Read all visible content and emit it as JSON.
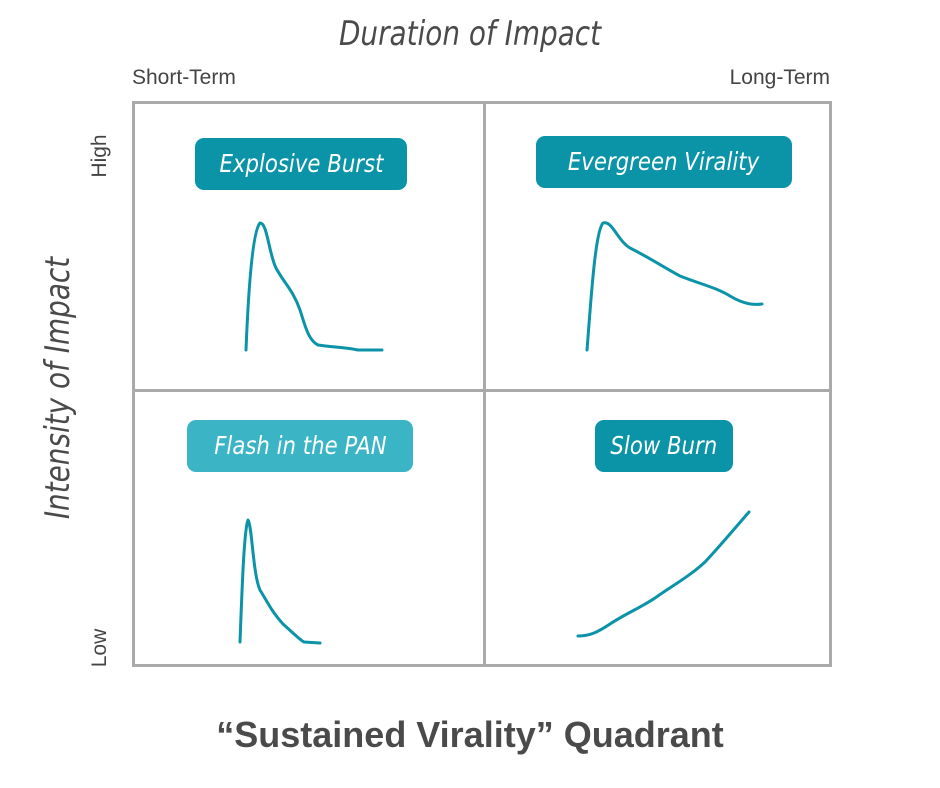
{
  "header": {
    "title": "Duration of Impact",
    "left_label": "Short-Term",
    "right_label": "Long-Term"
  },
  "y_axis": {
    "title": "Intensity of Impact",
    "high_label": "High",
    "low_label": "Low"
  },
  "quadrants": {
    "top_left": {
      "label": "Explosive Burst"
    },
    "top_right": {
      "label": "Evergreen Virality"
    },
    "bottom_left": {
      "label": "Flash in the PAN"
    },
    "bottom_right": {
      "label": "Slow Burn"
    }
  },
  "footer": {
    "title": "“Sustained Virality” Quadrant"
  },
  "colors": {
    "badge_primary": "#0b93a8",
    "badge_light": "#3bb5c6",
    "curve": "#0b93a8",
    "grid": "#aaaaaa"
  }
}
